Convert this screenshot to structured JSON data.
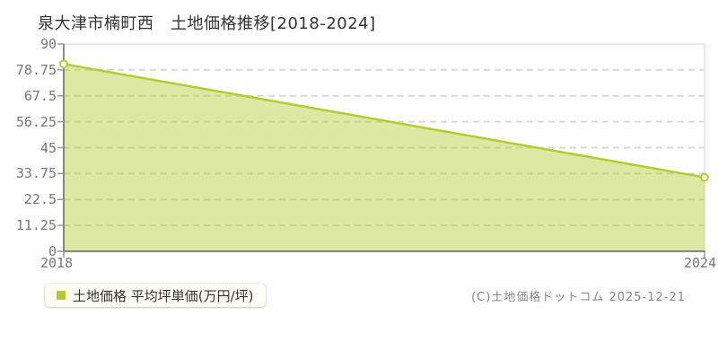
{
  "title": "泉大津市楠町西　土地価格推移[2018-2024]",
  "legend": {
    "label": "土地価格 平均坪単価(万円/坪)",
    "marker_color": "#b3cc33"
  },
  "copyright": "(C)土地価格ドットコム 2025-12-21",
  "chart_data": {
    "type": "area",
    "title": "泉大津市楠町西 土地価格推移[2018-2024]",
    "series_name": "土地価格 平均坪単価(万円/坪)",
    "x": [
      2018,
      2024
    ],
    "values": [
      81.3,
      32.1
    ],
    "x_tick_labels": [
      "2018",
      "2024"
    ],
    "y_ticks": [
      0,
      11.25,
      22.5,
      33.75,
      45,
      56.25,
      67.5,
      78.75,
      90
    ],
    "xlim": [
      2018,
      2024
    ],
    "ylim": [
      0,
      90
    ],
    "xlabel": "",
    "ylabel": "平均坪単価(万円/坪)",
    "grid": "dashed-horizontal",
    "legend_position": "bottom-left",
    "line_color": "#b3cc33",
    "fill_color": "rgba(179,204,51,0.45)",
    "gridline_color": "#d9d9d9",
    "axis_color": "#666666",
    "border_color": "#e3e3e3",
    "tick_label_color": "#777777",
    "marker": "circle-white-fill"
  }
}
